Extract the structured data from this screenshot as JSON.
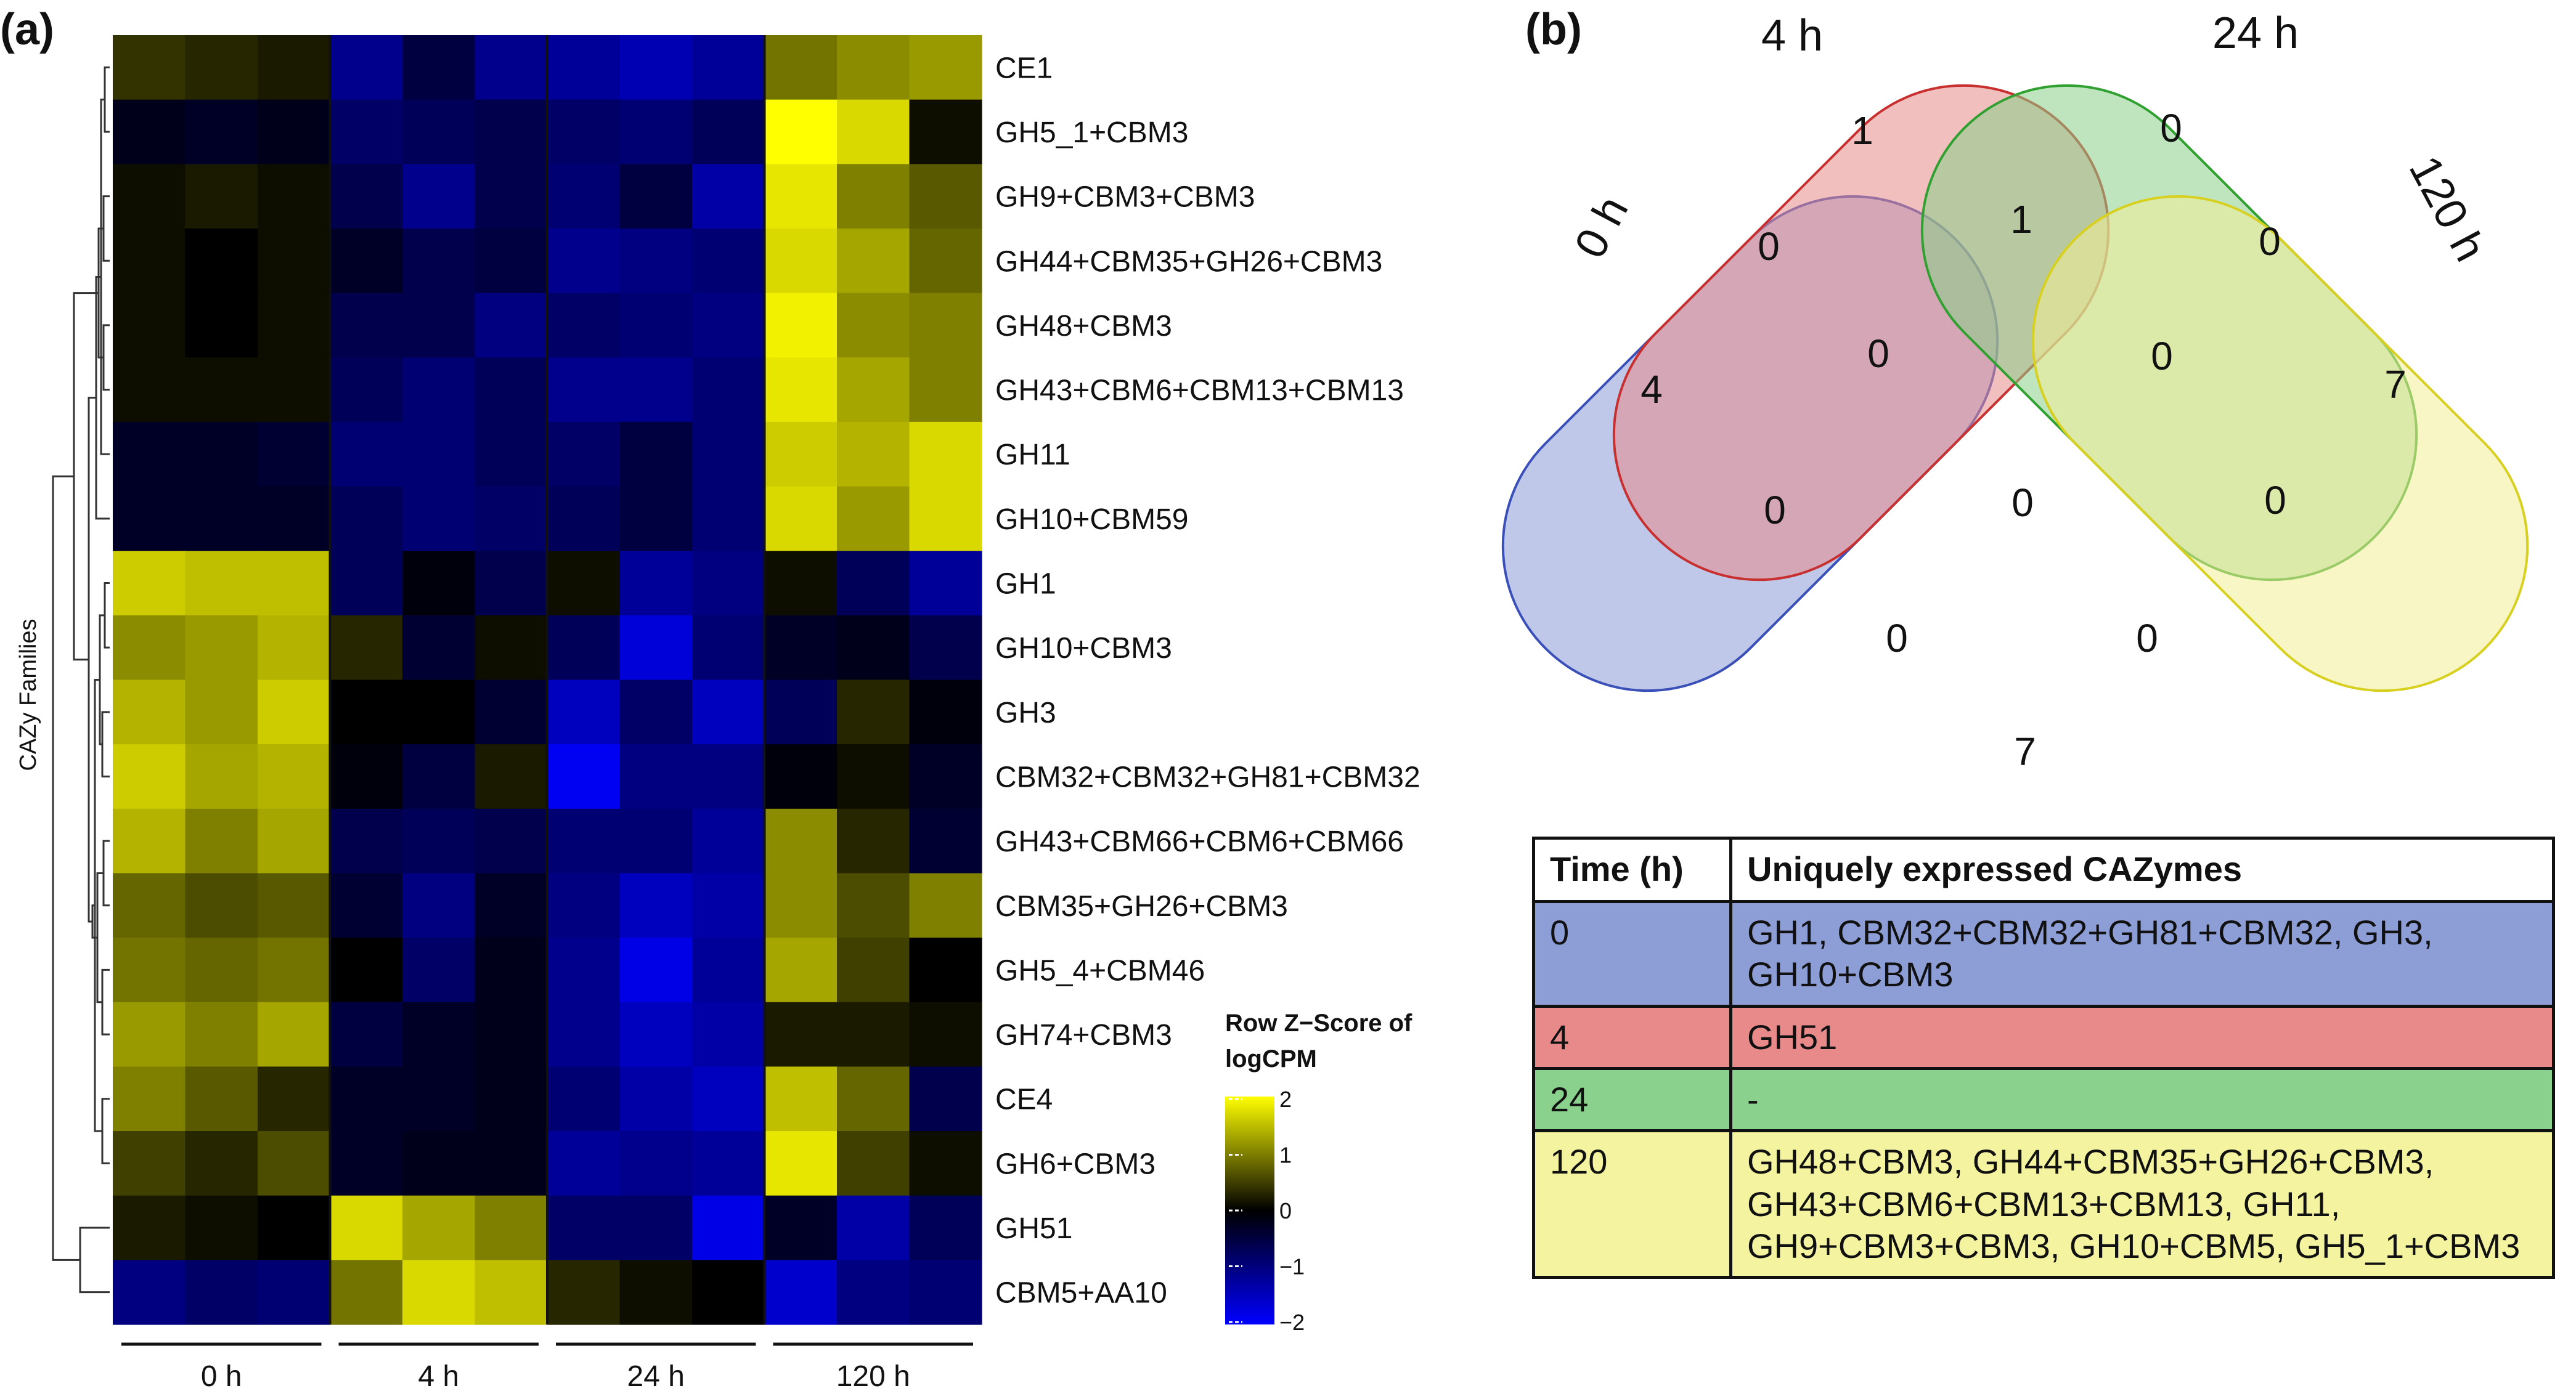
{
  "panel_labels": {
    "a": "(a)",
    "b": "(b)"
  },
  "chart_data": [
    {
      "type": "heatmap",
      "panel": "(a)",
      "ylabel": "CAZy Families",
      "column_groups": [
        "0 h",
        "4 h",
        "24 h",
        "120 h"
      ],
      "replicates_per_group": 3,
      "rows": [
        "CE1",
        "GH5_1+CBM3",
        "GH9+CBM3+CBM3",
        "GH44+CBM35+GH26+CBM3",
        "GH48+CBM3",
        "GH43+CBM6+CBM13+CBM13",
        "GH11",
        "GH10+CBM59",
        "GH1",
        "GH10+CBM3",
        "GH3",
        "CBM32+CBM32+GH81+CBM32",
        "GH43+CBM66+CBM6+CBM66",
        "CBM35+GH26+CBM3",
        "GH5_4+CBM46",
        "GH74+CBM3",
        "CE4",
        "GH6+CBM3",
        "GH51",
        "CBM5+AA10"
      ],
      "values": [
        [
          0.4,
          0.3,
          0.2,
          -1.1,
          -0.5,
          -1.1,
          -1.2,
          -1.4,
          -1.2,
          0.9,
          1.1,
          1.2
        ],
        [
          -0.2,
          -0.3,
          -0.2,
          -0.8,
          -0.7,
          -0.6,
          -0.8,
          -0.9,
          -0.7,
          2.0,
          1.7,
          0.1
        ],
        [
          0.1,
          0.2,
          0.1,
          -0.6,
          -1.1,
          -0.6,
          -0.9,
          -0.5,
          -1.3,
          1.8,
          1.0,
          0.7
        ],
        [
          0.1,
          0.0,
          0.1,
          -0.3,
          -0.6,
          -0.5,
          -1.1,
          -1.0,
          -0.9,
          1.7,
          1.3,
          0.8
        ],
        [
          0.1,
          0.0,
          0.1,
          -0.6,
          -0.6,
          -1.0,
          -0.8,
          -0.9,
          -1.0,
          1.9,
          1.1,
          1.0
        ],
        [
          0.1,
          0.1,
          0.1,
          -0.7,
          -0.9,
          -0.7,
          -1.1,
          -1.1,
          -0.9,
          1.8,
          1.3,
          1.0
        ],
        [
          -0.3,
          -0.3,
          -0.4,
          -0.9,
          -0.9,
          -0.7,
          -0.8,
          -0.5,
          -0.9,
          1.6,
          1.4,
          1.7
        ],
        [
          -0.3,
          -0.3,
          -0.3,
          -0.7,
          -0.9,
          -0.8,
          -0.7,
          -0.5,
          -0.9,
          1.7,
          1.2,
          1.7
        ],
        [
          1.6,
          1.5,
          1.5,
          -0.7,
          -0.1,
          -0.6,
          0.1,
          -1.2,
          -1.0,
          0.1,
          -0.7,
          -1.2
        ],
        [
          1.1,
          1.2,
          1.4,
          0.3,
          -0.4,
          0.1,
          -0.7,
          -1.7,
          -0.9,
          -0.3,
          -0.2,
          -0.6
        ],
        [
          1.4,
          1.2,
          1.6,
          0.0,
          0.0,
          -0.4,
          -1.5,
          -0.8,
          -1.5,
          -0.7,
          0.3,
          -0.1
        ],
        [
          1.6,
          1.3,
          1.4,
          -0.1,
          -0.5,
          0.2,
          -1.9,
          -1.0,
          -1.0,
          -0.1,
          0.1,
          -0.3
        ],
        [
          1.4,
          1.0,
          1.3,
          -0.6,
          -0.7,
          -0.6,
          -0.9,
          -0.9,
          -1.2,
          1.1,
          0.3,
          -0.4
        ],
        [
          0.8,
          0.6,
          0.7,
          -0.4,
          -1.0,
          -0.3,
          -1.0,
          -1.5,
          -1.3,
          1.1,
          0.6,
          1.0
        ],
        [
          0.9,
          0.8,
          0.9,
          0.0,
          -0.8,
          -0.2,
          -1.1,
          -1.8,
          -1.2,
          1.3,
          0.5,
          0.0
        ],
        [
          1.2,
          1.0,
          1.3,
          -0.5,
          -0.3,
          -0.2,
          -1.1,
          -1.5,
          -1.3,
          0.2,
          0.2,
          0.1
        ],
        [
          1.0,
          0.7,
          0.3,
          -0.3,
          -0.3,
          -0.2,
          -0.9,
          -1.3,
          -1.5,
          1.5,
          0.8,
          -0.6
        ],
        [
          0.5,
          0.3,
          0.6,
          -0.3,
          -0.2,
          -0.2,
          -1.2,
          -1.1,
          -1.2,
          1.8,
          0.5,
          0.1
        ],
        [
          0.2,
          0.1,
          0.0,
          1.7,
          1.3,
          1.0,
          -0.8,
          -0.8,
          -1.8,
          -0.3,
          -1.3,
          -0.7
        ],
        [
          -1.0,
          -0.8,
          -0.9,
          0.9,
          1.7,
          1.5,
          0.3,
          0.1,
          0.0,
          -1.6,
          -1.0,
          -0.9
        ]
      ],
      "color_key": {
        "title_line1": "Row Z−Score of",
        "title_line2": "logCPM",
        "range": [
          -2,
          2
        ],
        "ticks": [
          "2",
          "1",
          "0",
          "−1",
          "−2"
        ],
        "low_color": "#0000ff",
        "mid_color": "#000000",
        "high_color": "#ffff00"
      }
    },
    {
      "type": "venn",
      "panel": "(b)",
      "sets": [
        {
          "name": "0 h",
          "color": "#8a9ad6"
        },
        {
          "name": "4 h",
          "color": "#e88a8a"
        },
        {
          "name": "24 h",
          "color": "#88d088"
        },
        {
          "name": "120 h",
          "color": "#f2ee96"
        }
      ],
      "regions": [
        {
          "sets": [
            "0 h"
          ],
          "value": "4"
        },
        {
          "sets": [
            "4 h"
          ],
          "value": "1"
        },
        {
          "sets": [
            "24 h"
          ],
          "value": "0"
        },
        {
          "sets": [
            "120 h"
          ],
          "value": "7"
        },
        {
          "sets": [
            "0 h",
            "4 h"
          ],
          "value": "0"
        },
        {
          "sets": [
            "4 h",
            "24 h"
          ],
          "value": "1"
        },
        {
          "sets": [
            "24 h",
            "120 h"
          ],
          "value": "0"
        },
        {
          "sets": [
            "0 h",
            "4 h",
            "24 h"
          ],
          "value": "0"
        },
        {
          "sets": [
            "4 h",
            "24 h",
            "120 h"
          ],
          "value": "0"
        },
        {
          "sets": [
            "0 h",
            "24 h"
          ],
          "value": "0"
        },
        {
          "sets": [
            "0 h",
            "4 h",
            "24 h",
            "120 h"
          ],
          "value": "0"
        },
        {
          "sets": [
            "4 h",
            "120 h"
          ],
          "value": "0"
        },
        {
          "sets": [
            "0 h",
            "24 h",
            "120 h"
          ],
          "value": "0"
        },
        {
          "sets": [
            "0 h",
            "4 h",
            "120 h"
          ],
          "value": "0"
        },
        {
          "sets": [
            "0 h",
            "120 h"
          ],
          "value": "7"
        }
      ]
    },
    {
      "type": "table",
      "panel": "(b)",
      "columns": [
        "Time (h)",
        "Uniquely expressed CAZymes"
      ],
      "rows": [
        {
          "time": "0",
          "cazymes": "GH1, CBM32+CBM32+GH81+CBM32, GH3, GH10+CBM3",
          "color": "#8d9ed7"
        },
        {
          "time": "4",
          "cazymes": "GH51",
          "color": "#e8898a"
        },
        {
          "time": "24",
          "cazymes": "-",
          "color": "#89d18c"
        },
        {
          "time": "120",
          "cazymes": "GH48+CBM3, GH44+CBM35+GH26+CBM3, GH43+CBM6+CBM13+CBM13, GH11, GH9+CBM3+CBM3, GH10+CBM5, GH5_1+CBM3",
          "color": "#f3f3a0"
        }
      ]
    }
  ]
}
